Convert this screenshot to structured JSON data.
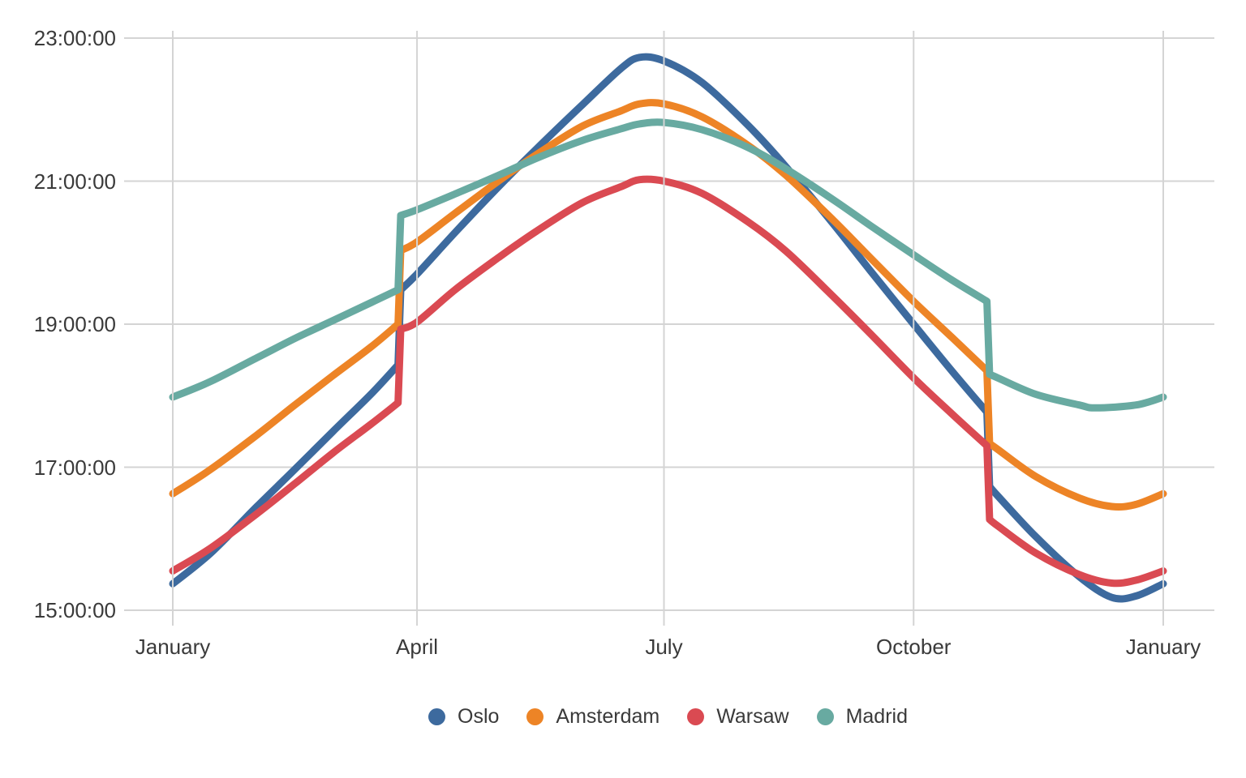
{
  "chart_data": {
    "type": "line",
    "title": "",
    "x_axis": {
      "tick_labels": [
        "January",
        "April",
        "July",
        "October",
        "January"
      ],
      "tick_days": [
        1,
        91,
        182,
        274,
        366
      ],
      "domain_days": [
        1,
        366
      ],
      "grid": true
    },
    "y_axis": {
      "tick_labels": [
        "23:00:00",
        "21:00:00",
        "19:00:00",
        "17:00:00",
        "15:00:00"
      ],
      "tick_hours": [
        23,
        21,
        19,
        17,
        15
      ],
      "domain_hours": [
        15,
        23
      ],
      "tick_format": "HH:MM:SS",
      "grid": true
    },
    "legend_position": "bottom-center",
    "colors": {
      "grid": "#d4d4d4",
      "text": "#3a3a3a",
      "background": "#ffffff"
    },
    "series": [
      {
        "name": "Oslo",
        "color": "#3d6a9e",
        "points": [
          [
            1,
            15.37
          ],
          [
            15,
            15.8
          ],
          [
            32,
            16.45
          ],
          [
            46,
            16.97
          ],
          [
            60,
            17.5
          ],
          [
            74,
            18.02
          ],
          [
            84,
            18.43
          ],
          [
            85,
            19.48
          ],
          [
            91,
            19.7
          ],
          [
            105,
            20.28
          ],
          [
            121,
            20.92
          ],
          [
            135,
            21.45
          ],
          [
            152,
            22.07
          ],
          [
            166,
            22.57
          ],
          [
            173,
            22.73
          ],
          [
            182,
            22.68
          ],
          [
            196,
            22.38
          ],
          [
            213,
            21.78
          ],
          [
            227,
            21.2
          ],
          [
            244,
            20.42
          ],
          [
            258,
            19.75
          ],
          [
            274,
            19.0
          ],
          [
            288,
            18.35
          ],
          [
            301,
            17.77
          ],
          [
            302,
            16.73
          ],
          [
            305,
            16.6
          ],
          [
            319,
            16.03
          ],
          [
            335,
            15.47
          ],
          [
            347,
            15.18
          ],
          [
            356,
            15.2
          ],
          [
            366,
            15.37
          ]
        ]
      },
      {
        "name": "Amsterdam",
        "color": "#ed8426",
        "points": [
          [
            1,
            16.63
          ],
          [
            15,
            16.97
          ],
          [
            32,
            17.45
          ],
          [
            46,
            17.87
          ],
          [
            60,
            18.28
          ],
          [
            74,
            18.68
          ],
          [
            84,
            19.0
          ],
          [
            85,
            20.03
          ],
          [
            91,
            20.15
          ],
          [
            105,
            20.55
          ],
          [
            121,
            21.0
          ],
          [
            135,
            21.37
          ],
          [
            152,
            21.77
          ],
          [
            166,
            21.98
          ],
          [
            173,
            22.08
          ],
          [
            182,
            22.08
          ],
          [
            196,
            21.9
          ],
          [
            213,
            21.5
          ],
          [
            227,
            21.08
          ],
          [
            244,
            20.47
          ],
          [
            258,
            19.93
          ],
          [
            274,
            19.32
          ],
          [
            288,
            18.82
          ],
          [
            301,
            18.35
          ],
          [
            302,
            17.33
          ],
          [
            305,
            17.25
          ],
          [
            319,
            16.87
          ],
          [
            335,
            16.57
          ],
          [
            347,
            16.45
          ],
          [
            356,
            16.48
          ],
          [
            366,
            16.63
          ]
        ]
      },
      {
        "name": "Warsaw",
        "color": "#da4a52",
        "points": [
          [
            1,
            15.55
          ],
          [
            15,
            15.87
          ],
          [
            32,
            16.35
          ],
          [
            46,
            16.77
          ],
          [
            60,
            17.2
          ],
          [
            74,
            17.6
          ],
          [
            84,
            17.9
          ],
          [
            85,
            18.93
          ],
          [
            91,
            19.03
          ],
          [
            105,
            19.48
          ],
          [
            121,
            19.93
          ],
          [
            135,
            20.3
          ],
          [
            152,
            20.7
          ],
          [
            166,
            20.92
          ],
          [
            173,
            21.02
          ],
          [
            182,
            21.0
          ],
          [
            196,
            20.83
          ],
          [
            213,
            20.43
          ],
          [
            227,
            20.02
          ],
          [
            244,
            19.4
          ],
          [
            258,
            18.87
          ],
          [
            274,
            18.25
          ],
          [
            288,
            17.75
          ],
          [
            301,
            17.3
          ],
          [
            302,
            16.27
          ],
          [
            305,
            16.18
          ],
          [
            319,
            15.8
          ],
          [
            335,
            15.5
          ],
          [
            347,
            15.38
          ],
          [
            356,
            15.42
          ],
          [
            366,
            15.55
          ]
        ]
      },
      {
        "name": "Madrid",
        "color": "#68aaa1",
        "points": [
          [
            1,
            17.98
          ],
          [
            15,
            18.2
          ],
          [
            32,
            18.53
          ],
          [
            46,
            18.8
          ],
          [
            60,
            19.05
          ],
          [
            74,
            19.3
          ],
          [
            84,
            19.48
          ],
          [
            85,
            20.52
          ],
          [
            91,
            20.6
          ],
          [
            105,
            20.82
          ],
          [
            121,
            21.08
          ],
          [
            135,
            21.32
          ],
          [
            152,
            21.57
          ],
          [
            166,
            21.73
          ],
          [
            173,
            21.8
          ],
          [
            182,
            21.82
          ],
          [
            196,
            21.72
          ],
          [
            213,
            21.47
          ],
          [
            227,
            21.17
          ],
          [
            244,
            20.75
          ],
          [
            258,
            20.38
          ],
          [
            274,
            19.97
          ],
          [
            288,
            19.62
          ],
          [
            301,
            19.32
          ],
          [
            302,
            18.3
          ],
          [
            305,
            18.25
          ],
          [
            319,
            18.02
          ],
          [
            335,
            17.87
          ],
          [
            341,
            17.83
          ],
          [
            356,
            17.87
          ],
          [
            366,
            17.98
          ]
        ]
      }
    ]
  }
}
